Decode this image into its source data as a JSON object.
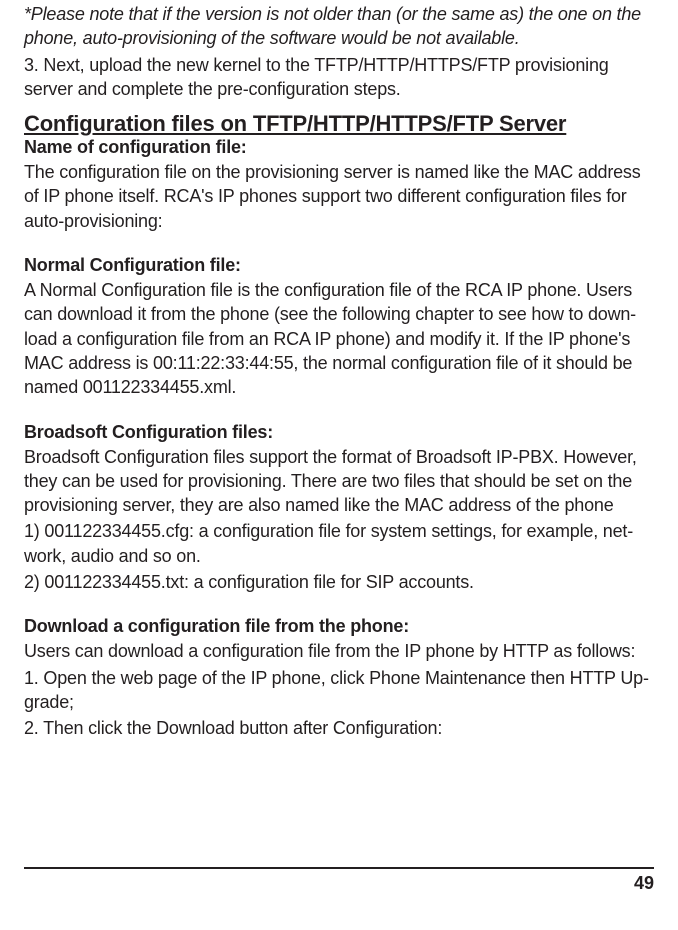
{
  "note": " *Please note that if the version is not older than (or the same as) the one on the phone, auto-provisioning of the software would be not available.",
  "step3": "3. Next, upload the new kernel to the TFTP/HTTP/HTTPS/FTP provisioning server and complete the pre-configuration steps.",
  "heading_config": "Configuration files on TFTP/HTTP/HTTPS/FTP Server",
  "sub_name": " Name of configuration file:",
  "name_body": "The configuration file on the provisioning server is named like the MAC address of IP phone itself. RCA's IP phones support two different configuration files for auto-provisioning:",
  "sub_normal": "Normal Configuration file:",
  "normal_body": "A Normal Configuration file is the configuration file of the RCA IP phone. Users can download it from the phone (see the following chapter to see how to down-load a configuration file from an RCA IP phone) and modify it. If the IP phone's MAC address is 00:11:22:33:44:55, the normal configuration file of it should be named 001122334455.xml.",
  "sub_broadsoft": "Broadsoft Configuration files:",
  "broadsoft_body1": "Broadsoft Configuration files support the format of Broadsoft IP-PBX. However, they can be used for provisioning. There are two files that should be set on the provisioning server, they are also named like the MAC address of the phone",
  "broadsoft_body2": "1) 001122334455.cfg: a configuration file for system settings, for example, net-work, audio and so on.",
  "broadsoft_body3": "2) 001122334455.txt: a configuration file for SIP accounts.",
  "sub_download": "Download a configuration file from the phone:",
  "download_body1": "Users can download a configuration file from the IP phone by HTTP as follows:",
  "download_body2": "1. Open the web page of the IP phone, click Phone Maintenance then HTTP Up-grade;",
  "download_body3": "2. Then click the Download button after Configuration:",
  "page_number": "49"
}
